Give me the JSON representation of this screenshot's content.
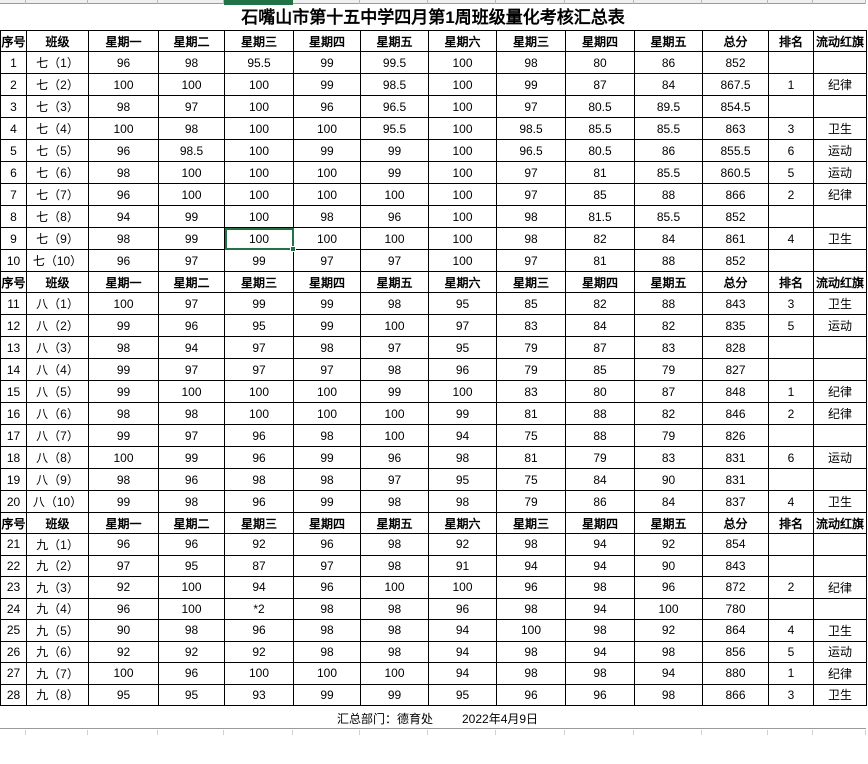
{
  "title": "石嘴山市第十五中学四月第1周班级量化考核汇总表",
  "columns": [
    "序号",
    "班级",
    "星期一",
    "星期二",
    "星期三",
    "星期四",
    "星期五",
    "星期六",
    "星期三",
    "星期四",
    "星期五",
    "总分",
    "排名",
    "流动红旗"
  ],
  "sections": [
    {
      "grade": "七",
      "rows": [
        [
          "1",
          "七（1）",
          "96",
          "98",
          "95.5",
          "99",
          "99.5",
          "100",
          "98",
          "80",
          "86",
          "852",
          "",
          ""
        ],
        [
          "2",
          "七（2）",
          "100",
          "100",
          "100",
          "99",
          "98.5",
          "100",
          "99",
          "87",
          "84",
          "867.5",
          "1",
          "纪律"
        ],
        [
          "3",
          "七（3）",
          "98",
          "97",
          "100",
          "96",
          "96.5",
          "100",
          "97",
          "80.5",
          "89.5",
          "854.5",
          "",
          ""
        ],
        [
          "4",
          "七（4）",
          "100",
          "98",
          "100",
          "100",
          "95.5",
          "100",
          "98.5",
          "85.5",
          "85.5",
          "863",
          "3",
          "卫生"
        ],
        [
          "5",
          "七（5）",
          "96",
          "98.5",
          "100",
          "99",
          "99",
          "100",
          "96.5",
          "80.5",
          "86",
          "855.5",
          "6",
          "运动"
        ],
        [
          "6",
          "七（6）",
          "98",
          "100",
          "100",
          "100",
          "99",
          "100",
          "97",
          "81",
          "85.5",
          "860.5",
          "5",
          "运动"
        ],
        [
          "7",
          "七（7）",
          "96",
          "100",
          "100",
          "100",
          "100",
          "100",
          "97",
          "85",
          "88",
          "866",
          "2",
          "纪律"
        ],
        [
          "8",
          "七（8）",
          "94",
          "99",
          "100",
          "98",
          "96",
          "100",
          "98",
          "81.5",
          "85.5",
          "852",
          "",
          ""
        ],
        [
          "9",
          "七（9）",
          "98",
          "99",
          "100",
          "100",
          "100",
          "100",
          "98",
          "82",
          "84",
          "861",
          "4",
          "卫生"
        ],
        [
          "10",
          "七（10）",
          "96",
          "97",
          "99",
          "97",
          "97",
          "100",
          "97",
          "81",
          "88",
          "852",
          "",
          ""
        ]
      ]
    },
    {
      "grade": "八",
      "rows": [
        [
          "11",
          "八（1）",
          "100",
          "97",
          "99",
          "99",
          "98",
          "95",
          "85",
          "82",
          "88",
          "843",
          "3",
          "卫生"
        ],
        [
          "12",
          "八（2）",
          "99",
          "96",
          "95",
          "99",
          "100",
          "97",
          "83",
          "84",
          "82",
          "835",
          "5",
          "运动"
        ],
        [
          "13",
          "八（3）",
          "98",
          "94",
          "97",
          "98",
          "97",
          "95",
          "79",
          "87",
          "83",
          "828",
          "",
          ""
        ],
        [
          "14",
          "八（4）",
          "99",
          "97",
          "97",
          "97",
          "98",
          "96",
          "79",
          "85",
          "79",
          "827",
          "",
          ""
        ],
        [
          "15",
          "八（5）",
          "99",
          "100",
          "100",
          "100",
          "99",
          "100",
          "83",
          "80",
          "87",
          "848",
          "1",
          "纪律"
        ],
        [
          "16",
          "八（6）",
          "98",
          "98",
          "100",
          "100",
          "100",
          "99",
          "81",
          "88",
          "82",
          "846",
          "2",
          "纪律"
        ],
        [
          "17",
          "八（7）",
          "99",
          "97",
          "96",
          "98",
          "100",
          "94",
          "75",
          "88",
          "79",
          "826",
          "",
          ""
        ],
        [
          "18",
          "八（8）",
          "100",
          "99",
          "96",
          "99",
          "96",
          "98",
          "81",
          "79",
          "83",
          "831",
          "6",
          "运动"
        ],
        [
          "19",
          "八（9）",
          "98",
          "96",
          "98",
          "98",
          "97",
          "95",
          "75",
          "84",
          "90",
          "831",
          "",
          ""
        ],
        [
          "20",
          "八（10）",
          "99",
          "98",
          "96",
          "99",
          "98",
          "98",
          "79",
          "86",
          "84",
          "837",
          "4",
          "卫生"
        ]
      ]
    },
    {
      "grade": "九",
      "rows": [
        [
          "21",
          "九（1）",
          "96",
          "96",
          "92",
          "96",
          "98",
          "92",
          "98",
          "94",
          "92",
          "854",
          "",
          ""
        ],
        [
          "22",
          "九（2）",
          "97",
          "95",
          "87",
          "97",
          "98",
          "91",
          "94",
          "94",
          "90",
          "843",
          "",
          ""
        ],
        [
          "23",
          "九（3）",
          "92",
          "100",
          "94",
          "96",
          "100",
          "100",
          "96",
          "98",
          "96",
          "872",
          "2",
          "纪律"
        ],
        [
          "24",
          "九（4）",
          "96",
          "100",
          "*2",
          "98",
          "98",
          "96",
          "98",
          "94",
          "100",
          "780",
          "",
          ""
        ],
        [
          "25",
          "九（5）",
          "90",
          "98",
          "96",
          "98",
          "98",
          "94",
          "100",
          "98",
          "92",
          "864",
          "4",
          "卫生"
        ],
        [
          "26",
          "九（6）",
          "92",
          "92",
          "92",
          "98",
          "98",
          "94",
          "98",
          "94",
          "98",
          "856",
          "5",
          "运动"
        ],
        [
          "27",
          "九（7）",
          "100",
          "96",
          "100",
          "100",
          "100",
          "94",
          "98",
          "98",
          "94",
          "880",
          "1",
          "纪律"
        ],
        [
          "28",
          "九（8）",
          "95",
          "95",
          "93",
          "99",
          "99",
          "95",
          "96",
          "96",
          "98",
          "866",
          "3",
          "卫生"
        ]
      ]
    }
  ],
  "footer": {
    "summary": "汇总部门：德育处",
    "date": "2022年4月9日"
  },
  "selection": {
    "section": 0,
    "row": 8,
    "col": 4,
    "color": "#217346"
  }
}
